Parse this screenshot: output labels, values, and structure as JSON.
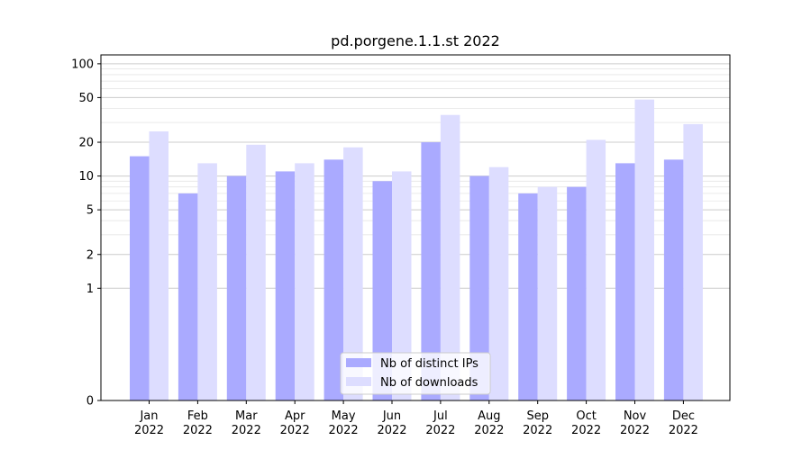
{
  "chart_data": {
    "type": "bar",
    "title": "pd.porgene.1.1.st 2022",
    "xlabel": "",
    "ylabel": "",
    "y_scale": "symlog",
    "ylim": [
      0,
      120
    ],
    "yticks": [
      0,
      1,
      2,
      5,
      10,
      20,
      50,
      100
    ],
    "ytick_labels": [
      "0",
      "1",
      "2",
      "5",
      "10",
      "20",
      "50",
      "100"
    ],
    "grid": "horizontal",
    "legend_position": "bottom-center",
    "categories": [
      "Jan",
      "Feb",
      "Mar",
      "Apr",
      "May",
      "Jun",
      "Jul",
      "Aug",
      "Sep",
      "Oct",
      "Nov",
      "Dec"
    ],
    "category_years": [
      "2022",
      "2022",
      "2022",
      "2022",
      "2022",
      "2022",
      "2022",
      "2022",
      "2022",
      "2022",
      "2022",
      "2022"
    ],
    "series": [
      {
        "name": "Nb of distinct IPs",
        "color": "#aaaaff",
        "values": [
          15,
          7,
          10,
          11,
          14,
          9,
          20,
          10,
          7,
          8,
          13,
          14
        ]
      },
      {
        "name": "Nb of downloads",
        "color": "#ddddff",
        "values": [
          25,
          13,
          19,
          13,
          18,
          11,
          35,
          12,
          8,
          21,
          48,
          29
        ]
      }
    ]
  }
}
